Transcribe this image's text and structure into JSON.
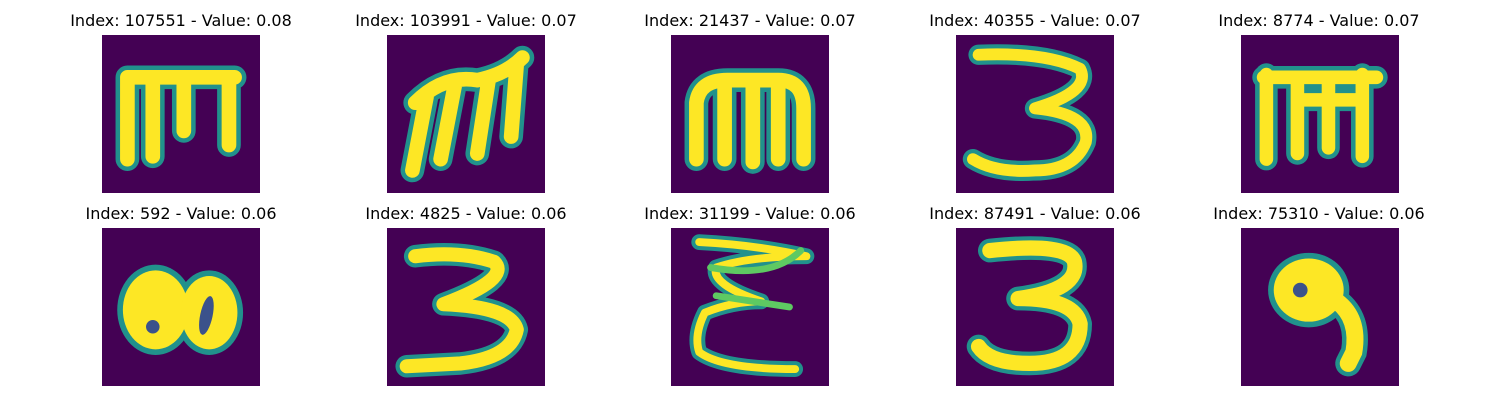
{
  "figure": {
    "background": "#ffffff",
    "image_background": "#440154",
    "stroke_core": "#fde725",
    "stroke_edge": "#21918c",
    "stroke_mid": "#5ec962",
    "panels": [
      {
        "index": "107551",
        "value": "0.08",
        "title": "Index: 107551 - Value: 0.08",
        "glyph": "m-block"
      },
      {
        "index": "103991",
        "value": "0.07",
        "title": "Index: 103991 - Value: 0.07",
        "glyph": "m-slanted"
      },
      {
        "index": "21437",
        "value": "0.07",
        "title": "Index: 21437 - Value: 0.07",
        "glyph": "m-rounded"
      },
      {
        "index": "40355",
        "value": "0.07",
        "title": "Index: 40355 - Value: 0.07",
        "glyph": "three"
      },
      {
        "index": "8774",
        "value": "0.07",
        "title": "Index: 8774 - Value: 0.07",
        "glyph": "m-block"
      },
      {
        "index": "592",
        "value": "0.06",
        "title": "Index: 592 - Value: 0.06",
        "glyph": "blob-eight"
      },
      {
        "index": "4825",
        "value": "0.06",
        "title": "Index: 4825 - Value: 0.06",
        "glyph": "three-flat"
      },
      {
        "index": "31199",
        "value": "0.06",
        "title": "Index: 31199 - Value: 0.06",
        "glyph": "epsilon-scribble"
      },
      {
        "index": "87491",
        "value": "0.06",
        "title": "Index: 87491 - Value: 0.06",
        "glyph": "three-thick"
      },
      {
        "index": "75310",
        "value": "0.06",
        "title": "Index: 75310 - Value: 0.06",
        "glyph": "nine-blob"
      }
    ]
  }
}
